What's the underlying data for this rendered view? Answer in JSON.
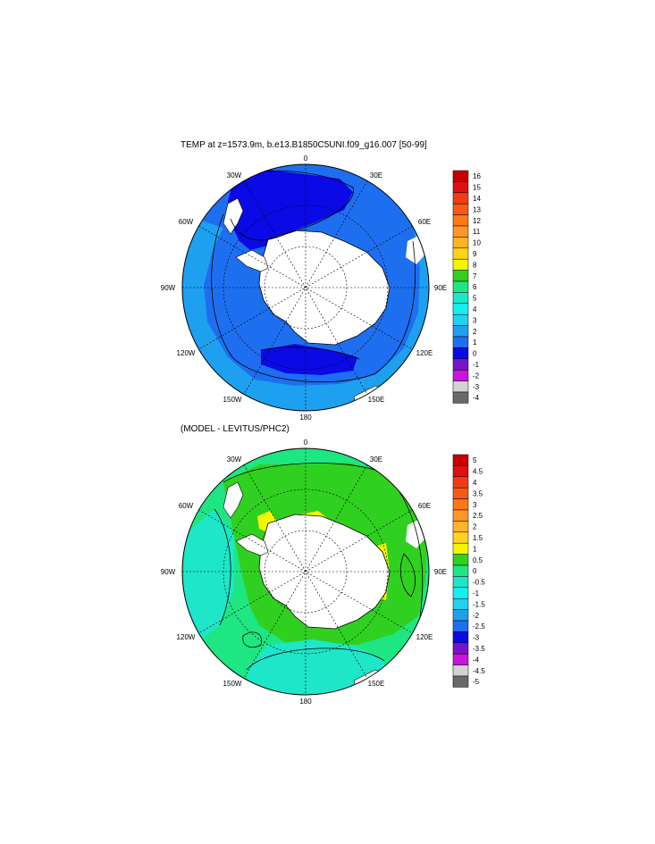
{
  "panels": [
    {
      "title": "TEMP at z=1573.9m, b.e13.B1850C5UNI.f09_g16.007 [50-99]",
      "longitude_labels": {
        "0": "0",
        "30E": "30E",
        "60E": "60E",
        "90E": "90E",
        "120E": "120E",
        "150E": "150E",
        "180": "180",
        "150W": "150W",
        "120W": "120W",
        "90W": "90W",
        "60W": "60W",
        "30W": "30W"
      },
      "colorbar": {
        "labels": [
          "16",
          "15",
          "14",
          "13",
          "12",
          "11",
          "10",
          "9",
          "8",
          "7",
          "6",
          "5",
          "4",
          "3",
          "2",
          "1",
          "0",
          "-1",
          "-2",
          "-3",
          "-4"
        ],
        "colors": [
          "#c80000",
          "#e01010",
          "#f03c14",
          "#f85a14",
          "#ff7814",
          "#ff9628",
          "#ffb428",
          "#ffd21e",
          "#f5f500",
          "#30d020",
          "#1ee682",
          "#1ee6c8",
          "#14f0f0",
          "#1ed2f0",
          "#1ea0f0",
          "#1e6ef0",
          "#0a0ae6",
          "#7814c8",
          "#c814dc",
          "#d2d2d2",
          "#696969"
        ]
      },
      "field_colors": {
        "ocean": "#1e6ef0",
        "ocean_warm": "#1ea0f0",
        "ocean_cold": "#0a0ae6",
        "land": "#ffffff"
      }
    },
    {
      "title": "(MODEL - LEVITUS/PHC2)",
      "longitude_labels": {
        "0": "0",
        "30E": "30E",
        "60E": "60E",
        "90E": "90E",
        "120E": "120E",
        "150E": "150E",
        "180": "180",
        "150W": "150W",
        "120W": "120W",
        "90W": "90W",
        "60W": "60W",
        "30W": "30W"
      },
      "colorbar": {
        "labels": [
          "5",
          "4.5",
          "4",
          "3.5",
          "3",
          "2.5",
          "2",
          "1.5",
          "1",
          "0.5",
          "0",
          "-0.5",
          "-1",
          "-1.5",
          "-2",
          "-2.5",
          "-3",
          "-3.5",
          "-4",
          "-4.5",
          "-5"
        ],
        "colors": [
          "#c80000",
          "#e01010",
          "#f03c14",
          "#f85a14",
          "#ff7814",
          "#ff9628",
          "#ffb428",
          "#ffd21e",
          "#f5f500",
          "#30d020",
          "#1ee682",
          "#1ee6c8",
          "#14f0f0",
          "#1ed2f0",
          "#1ea0f0",
          "#1e6ef0",
          "#0a0ae6",
          "#7814c8",
          "#c814dc",
          "#d2d2d2",
          "#696969"
        ]
      },
      "field_colors": {
        "ocean": "#30d020",
        "ocean_cool": "#1ee6c8",
        "ocean_warm": "#f5f500",
        "land": "#ffffff"
      }
    }
  ]
}
